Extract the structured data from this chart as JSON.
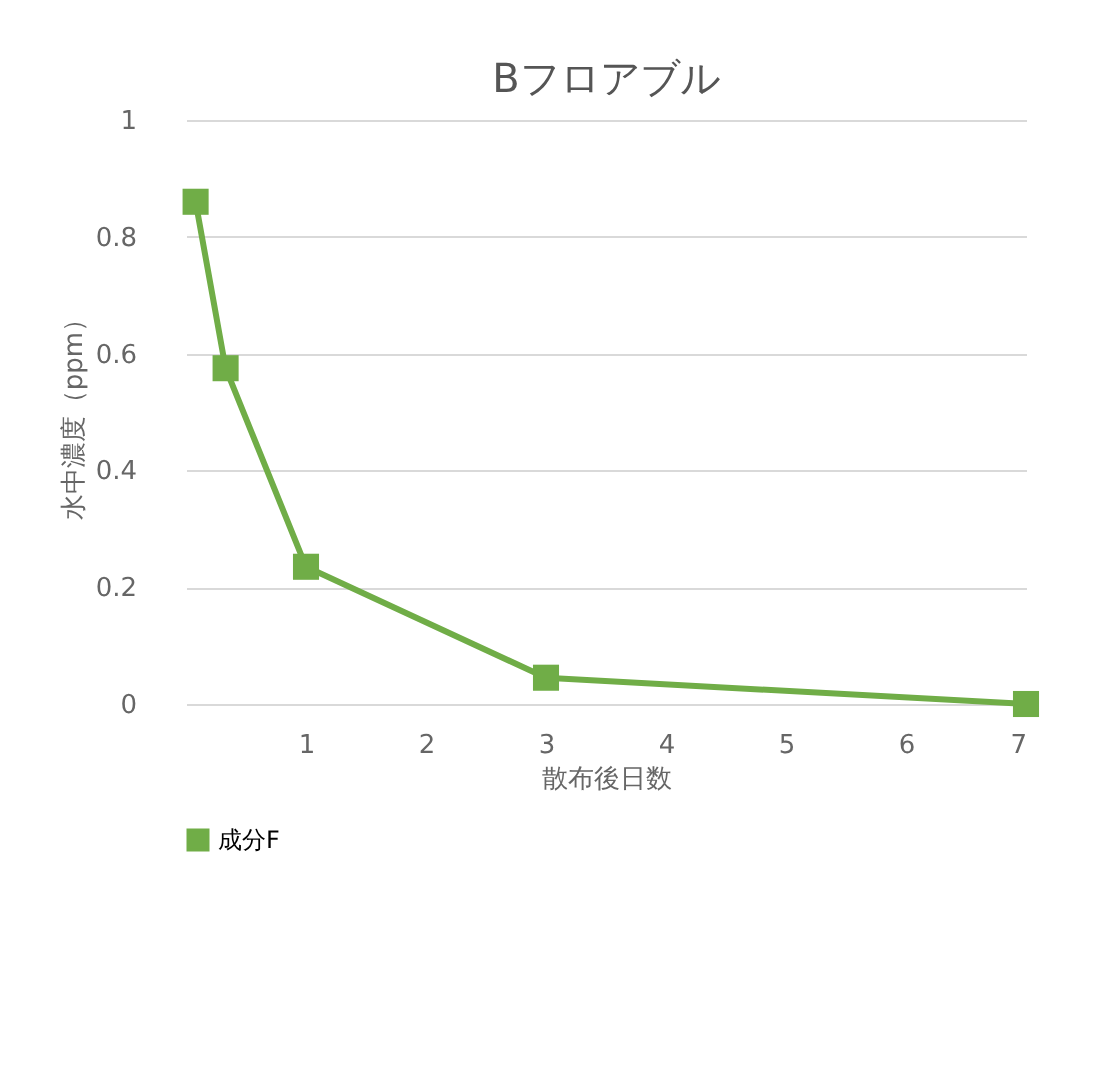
{
  "chart_data": {
    "type": "line",
    "title": "Bフロアブル",
    "xlabel": "散布後日数",
    "ylabel": "水中濃度（ppm）",
    "x": [
      0.08,
      0.33,
      1,
      3,
      7
    ],
    "series": [
      {
        "name": "成分F",
        "color": "#70ad47",
        "values": [
          0.86,
          0.575,
          0.235,
          0.045,
          0.0
        ]
      }
    ],
    "xlim": [
      0,
      7
    ],
    "xticks": [
      1,
      2,
      3,
      4,
      5,
      6,
      7
    ],
    "ylim": [
      0,
      1
    ],
    "yticks": [
      0,
      0.2,
      0.4,
      0.6,
      0.8,
      1
    ],
    "grid": "y",
    "legend": "bottom",
    "marker": "square",
    "line_style": "solid"
  }
}
